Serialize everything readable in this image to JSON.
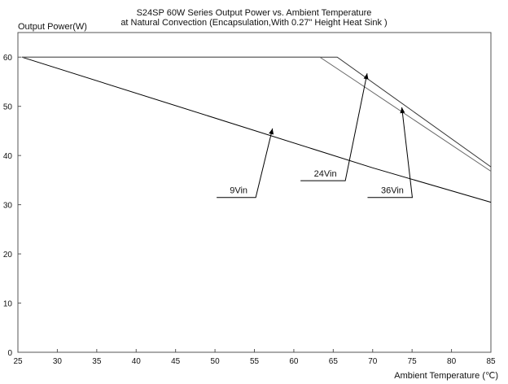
{
  "chart_data": {
    "type": "line",
    "title": "S24SP 60W Series Output Power vs. Ambient Temperature",
    "subtitle": "at Natural Convection (Encapsulation,With 0.27\" Height Heat Sink )",
    "ylabel": "Output Power(W)",
    "xlabel": "Ambient Temperature (℃)",
    "xlim": [
      25,
      85
    ],
    "ylim": [
      0,
      65
    ],
    "x_ticks": [
      25,
      30,
      35,
      40,
      45,
      50,
      55,
      60,
      65,
      70,
      75,
      80,
      85
    ],
    "y_ticks": [
      0,
      10,
      20,
      30,
      40,
      50,
      60
    ],
    "grid": false,
    "series": [
      {
        "name": "9Vin",
        "x": [
          25.5,
          70,
          85
        ],
        "y": [
          60,
          37.5,
          30.5
        ]
      },
      {
        "name": "24Vin",
        "x": [
          25.5,
          65.5,
          85
        ],
        "y": [
          60,
          60,
          37.7
        ]
      },
      {
        "name": "36Vin",
        "x": [
          25.5,
          63.3,
          68,
          85
        ],
        "y": [
          60,
          60,
          55,
          36.8
        ]
      }
    ],
    "annotations": [
      {
        "label": "9Vin",
        "text_at": [
          53,
          32.3
        ],
        "arrow_to": [
          57.3,
          45.5
        ]
      },
      {
        "label": "24Vin",
        "text_at": [
          64,
          35.7
        ],
        "arrow_to": [
          69.3,
          56.7
        ]
      },
      {
        "label": "36Vin",
        "text_at": [
          72.5,
          32.3
        ],
        "arrow_to": [
          73.7,
          49.8
        ]
      }
    ]
  }
}
